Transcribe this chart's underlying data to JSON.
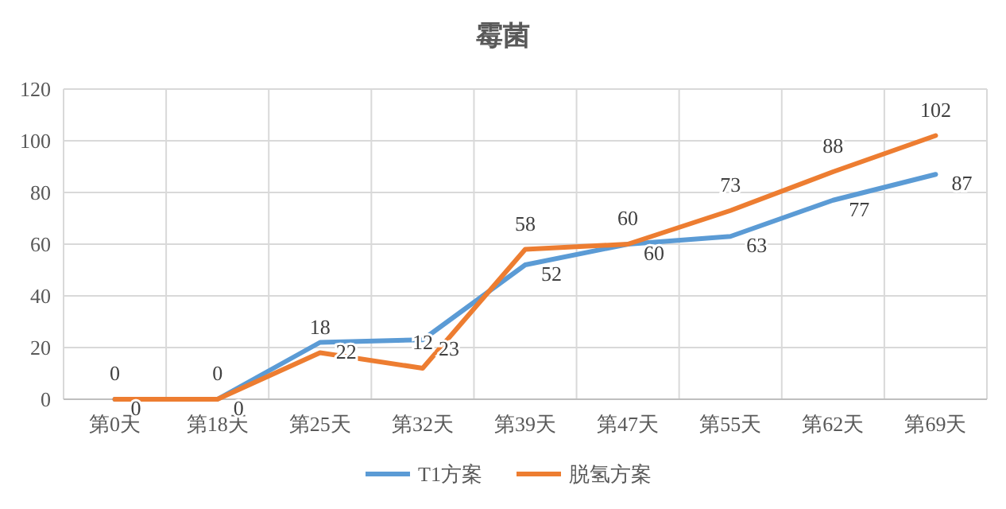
{
  "chart_data": {
    "type": "line",
    "title": "霉菌",
    "categories": [
      "第0天",
      "第18天",
      "第25天",
      "第32天",
      "第39天",
      "第47天",
      "第55天",
      "第62天",
      "第69天"
    ],
    "series": [
      {
        "name": "T1方案",
        "color": "#5b9bd5",
        "values": [
          0,
          0,
          22,
          23,
          52,
          60,
          63,
          77,
          87
        ]
      },
      {
        "name": "脱氢方案",
        "color": "#ed7d31",
        "values": [
          0,
          0,
          18,
          12,
          58,
          60,
          73,
          88,
          102
        ]
      }
    ],
    "ylim": [
      0,
      120
    ],
    "yticks": [
      0,
      20,
      40,
      60,
      80,
      100,
      120
    ],
    "grid": true,
    "legend": "bottom",
    "data_labels": true,
    "marker": "none",
    "line_style": "solid"
  }
}
